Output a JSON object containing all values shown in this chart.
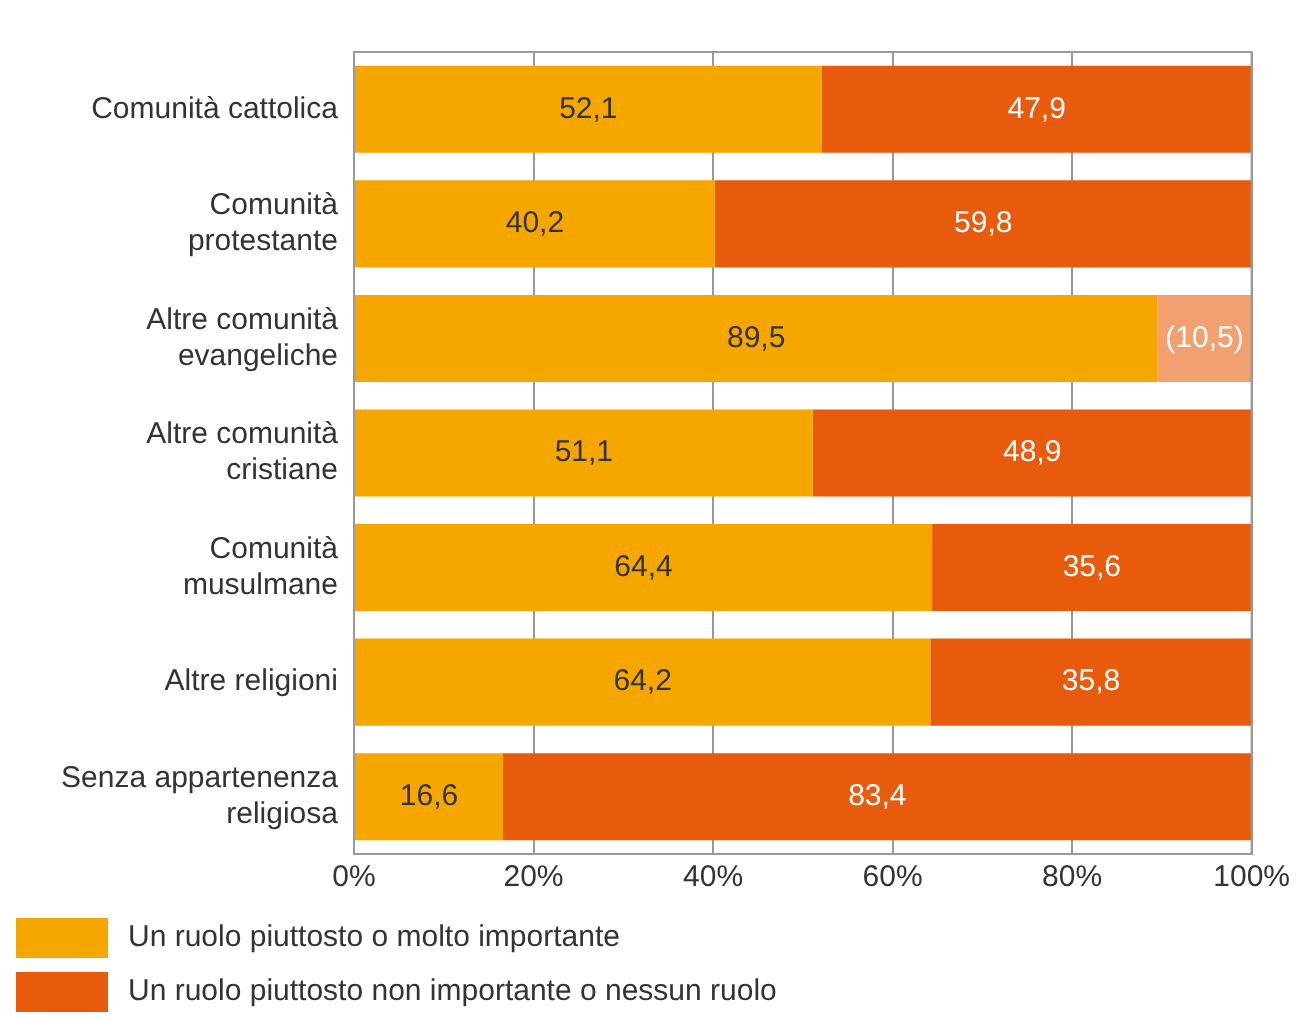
{
  "chart_data": {
    "type": "bar",
    "orientation": "horizontal",
    "stacked": true,
    "categories": [
      "Comunità cattolica",
      "Comunità protestante",
      "Altre comunità evangeliche",
      "Altre comunità cristiane",
      "Comunità musulmane",
      "Altre religioni",
      "Senza appartenenza religiosa"
    ],
    "series": [
      {
        "name": "Un ruolo piuttosto o molto importante",
        "color": "#f5a700",
        "values": [
          52.1,
          40.2,
          89.5,
          51.1,
          64.4,
          64.2,
          16.6
        ],
        "value_labels": [
          "52,1",
          "40,2",
          "89,5",
          "51,1",
          "64,4",
          "64,2",
          "16,6"
        ]
      },
      {
        "name": "Un ruolo piuttosto non importante o nessun ruolo",
        "color": "#e85b0c",
        "colors": [
          "#e85b0c",
          "#e85b0c",
          "#f3a070",
          "#e85b0c",
          "#e85b0c",
          "#e85b0c",
          "#e85b0c"
        ],
        "values": [
          47.9,
          59.8,
          10.5,
          48.9,
          35.6,
          35.8,
          83.4
        ],
        "value_labels": [
          "47,9",
          "59,8",
          "(10,5)",
          "48,9",
          "35,6",
          "35,8",
          "83,4"
        ]
      }
    ],
    "xlim": [
      0,
      100
    ],
    "xticks": [
      {
        "value": 0,
        "label": "0%"
      },
      {
        "value": 20,
        "label": "20%"
      },
      {
        "value": 40,
        "label": "40%"
      },
      {
        "value": 60,
        "label": "60%"
      },
      {
        "value": 80,
        "label": "80%"
      },
      {
        "value": 100,
        "label": "100%"
      }
    ],
    "grid": "x",
    "legend": "bottom left"
  }
}
